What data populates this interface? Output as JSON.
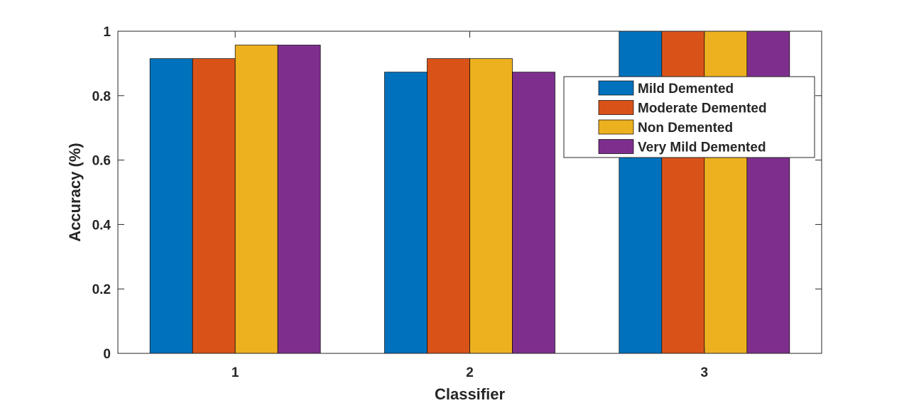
{
  "chart_data": {
    "type": "bar",
    "title": "",
    "xlabel": "Classifier",
    "ylabel": "Accuracy (%)",
    "categories": [
      "1",
      "2",
      "3"
    ],
    "series": [
      {
        "name": "Mild Demented",
        "color": "#0072BD",
        "values": [
          0.915,
          0.873,
          1.0
        ]
      },
      {
        "name": "Moderate Demented",
        "color": "#D95319",
        "values": [
          0.915,
          0.915,
          1.0
        ]
      },
      {
        "name": "Non Demented",
        "color": "#EDB120",
        "values": [
          0.957,
          0.915,
          1.0
        ]
      },
      {
        "name": "Very Mild Demented",
        "color": "#7E2F8E",
        "values": [
          0.957,
          0.873,
          1.0
        ]
      }
    ],
    "ylim": [
      0,
      1
    ],
    "yticks": [
      0,
      0.2,
      0.4,
      0.6,
      0.8,
      1
    ],
    "ytick_labels": [
      "0",
      "0.2",
      "0.4",
      "0.6",
      "0.8",
      "1"
    ],
    "grid": false,
    "legend_position": "top-right"
  }
}
